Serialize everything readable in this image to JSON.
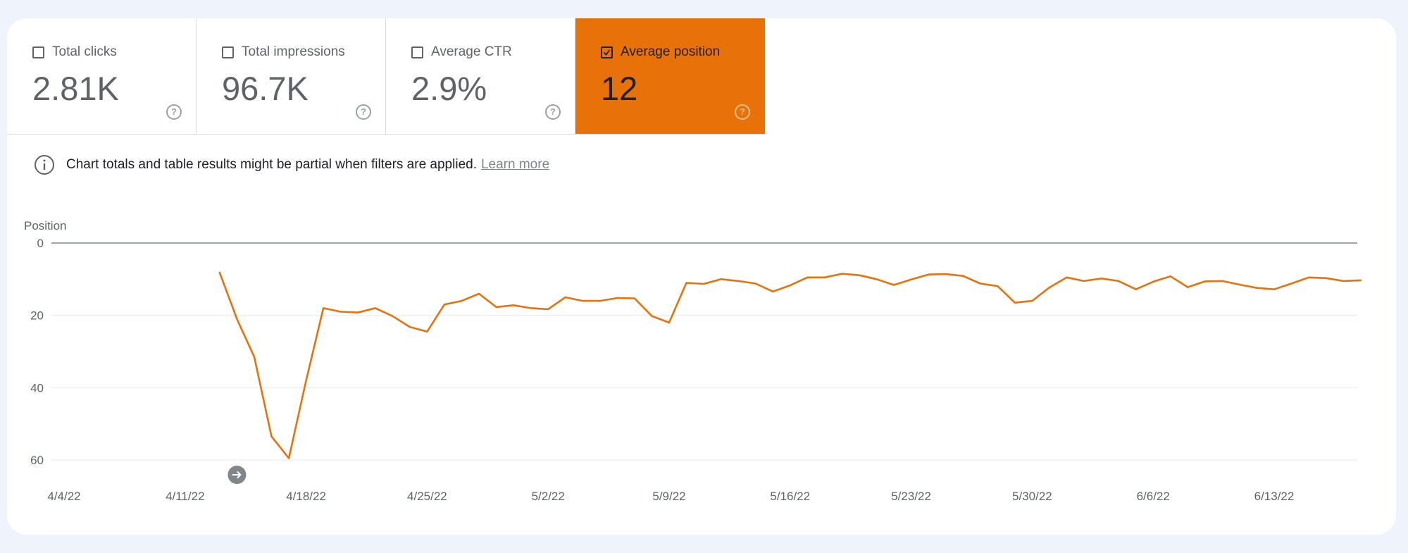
{
  "metrics": [
    {
      "label": "Total clicks",
      "value": "2.81K",
      "checked": false,
      "help_icon": "help-circle-icon"
    },
    {
      "label": "Total impressions",
      "value": "96.7K",
      "checked": false,
      "help_icon": "help-circle-icon"
    },
    {
      "label": "Average CTR",
      "value": "2.9%",
      "checked": false,
      "help_icon": "help-circle-icon"
    },
    {
      "label": "Average position",
      "value": "12",
      "checked": true,
      "help_icon": "help-circle-icon"
    }
  ],
  "notice": {
    "icon": "info-icon",
    "text": "Chart totals and table results might be partial when filters are applied.",
    "link": "Learn more"
  },
  "help_glyph": "?",
  "colors": {
    "accent": "#e8710a",
    "line": "#e8710a",
    "page_background": "#eef3fc"
  },
  "annotation_icon": "arrow-right-icon",
  "chart_data": {
    "type": "line",
    "ylabel": "Position",
    "y_inverted": true,
    "ylim": [
      0,
      60
    ],
    "yticks": [
      "0",
      "20",
      "40",
      "60"
    ],
    "xticks": [
      "4/4/22",
      "4/11/22",
      "4/18/22",
      "4/25/22",
      "5/2/22",
      "5/9/22",
      "5/16/22",
      "5/23/22",
      "5/30/22",
      "6/6/22",
      "6/13/22"
    ],
    "grid": true,
    "x_start": "2022-04-04",
    "series": [
      {
        "name": "Average position",
        "x": [
          "2022-04-13",
          "2022-04-14",
          "2022-04-15",
          "2022-04-16",
          "2022-04-17",
          "2022-04-18",
          "2022-04-19",
          "2022-04-20",
          "2022-04-21",
          "2022-04-22",
          "2022-04-23",
          "2022-04-24",
          "2022-04-25",
          "2022-04-26",
          "2022-04-27",
          "2022-04-28",
          "2022-04-29",
          "2022-04-30",
          "2022-05-01",
          "2022-05-02",
          "2022-05-03",
          "2022-05-04",
          "2022-05-05",
          "2022-05-06",
          "2022-05-07",
          "2022-05-08",
          "2022-05-09",
          "2022-05-10",
          "2022-05-11",
          "2022-05-12",
          "2022-05-13",
          "2022-05-14",
          "2022-05-15",
          "2022-05-16",
          "2022-05-17",
          "2022-05-18",
          "2022-05-19",
          "2022-05-20",
          "2022-05-21",
          "2022-05-22",
          "2022-05-23",
          "2022-05-24",
          "2022-05-25",
          "2022-05-26",
          "2022-05-27",
          "2022-05-28",
          "2022-05-29",
          "2022-05-30",
          "2022-05-31",
          "2022-06-01",
          "2022-06-02",
          "2022-06-03",
          "2022-06-04",
          "2022-06-05",
          "2022-06-06",
          "2022-06-07",
          "2022-06-08",
          "2022-06-09",
          "2022-06-10",
          "2022-06-11",
          "2022-06-12",
          "2022-06-13",
          "2022-06-14",
          "2022-06-15",
          "2022-06-16",
          "2022-06-17",
          "2022-06-18"
        ],
        "values": [
          8.2,
          21,
          31.5,
          53.5,
          59.5,
          38,
          18,
          19,
          19.2,
          18,
          20.2,
          23.2,
          24.5,
          17,
          16,
          14,
          17.7,
          17.2,
          18,
          18.3,
          15,
          16,
          16,
          15.2,
          15.3,
          20.2,
          22,
          11,
          11.3,
          10,
          10.5,
          11.2,
          13.4,
          11.7,
          9.5,
          9.5,
          8.5,
          8.9,
          10,
          11.6,
          10.1,
          8.7,
          8.6,
          9.1,
          11.2,
          11.9,
          16.5,
          16,
          12.3,
          9.5,
          10.5,
          9.8,
          10.5,
          12.8,
          10.7,
          9.2,
          12.2,
          10.6,
          10.5,
          11.5,
          12.4,
          12.8,
          11.2,
          9.5,
          9.7,
          10.5,
          10.3
        ]
      }
    ],
    "annotation": {
      "x": "2022-04-14"
    }
  }
}
